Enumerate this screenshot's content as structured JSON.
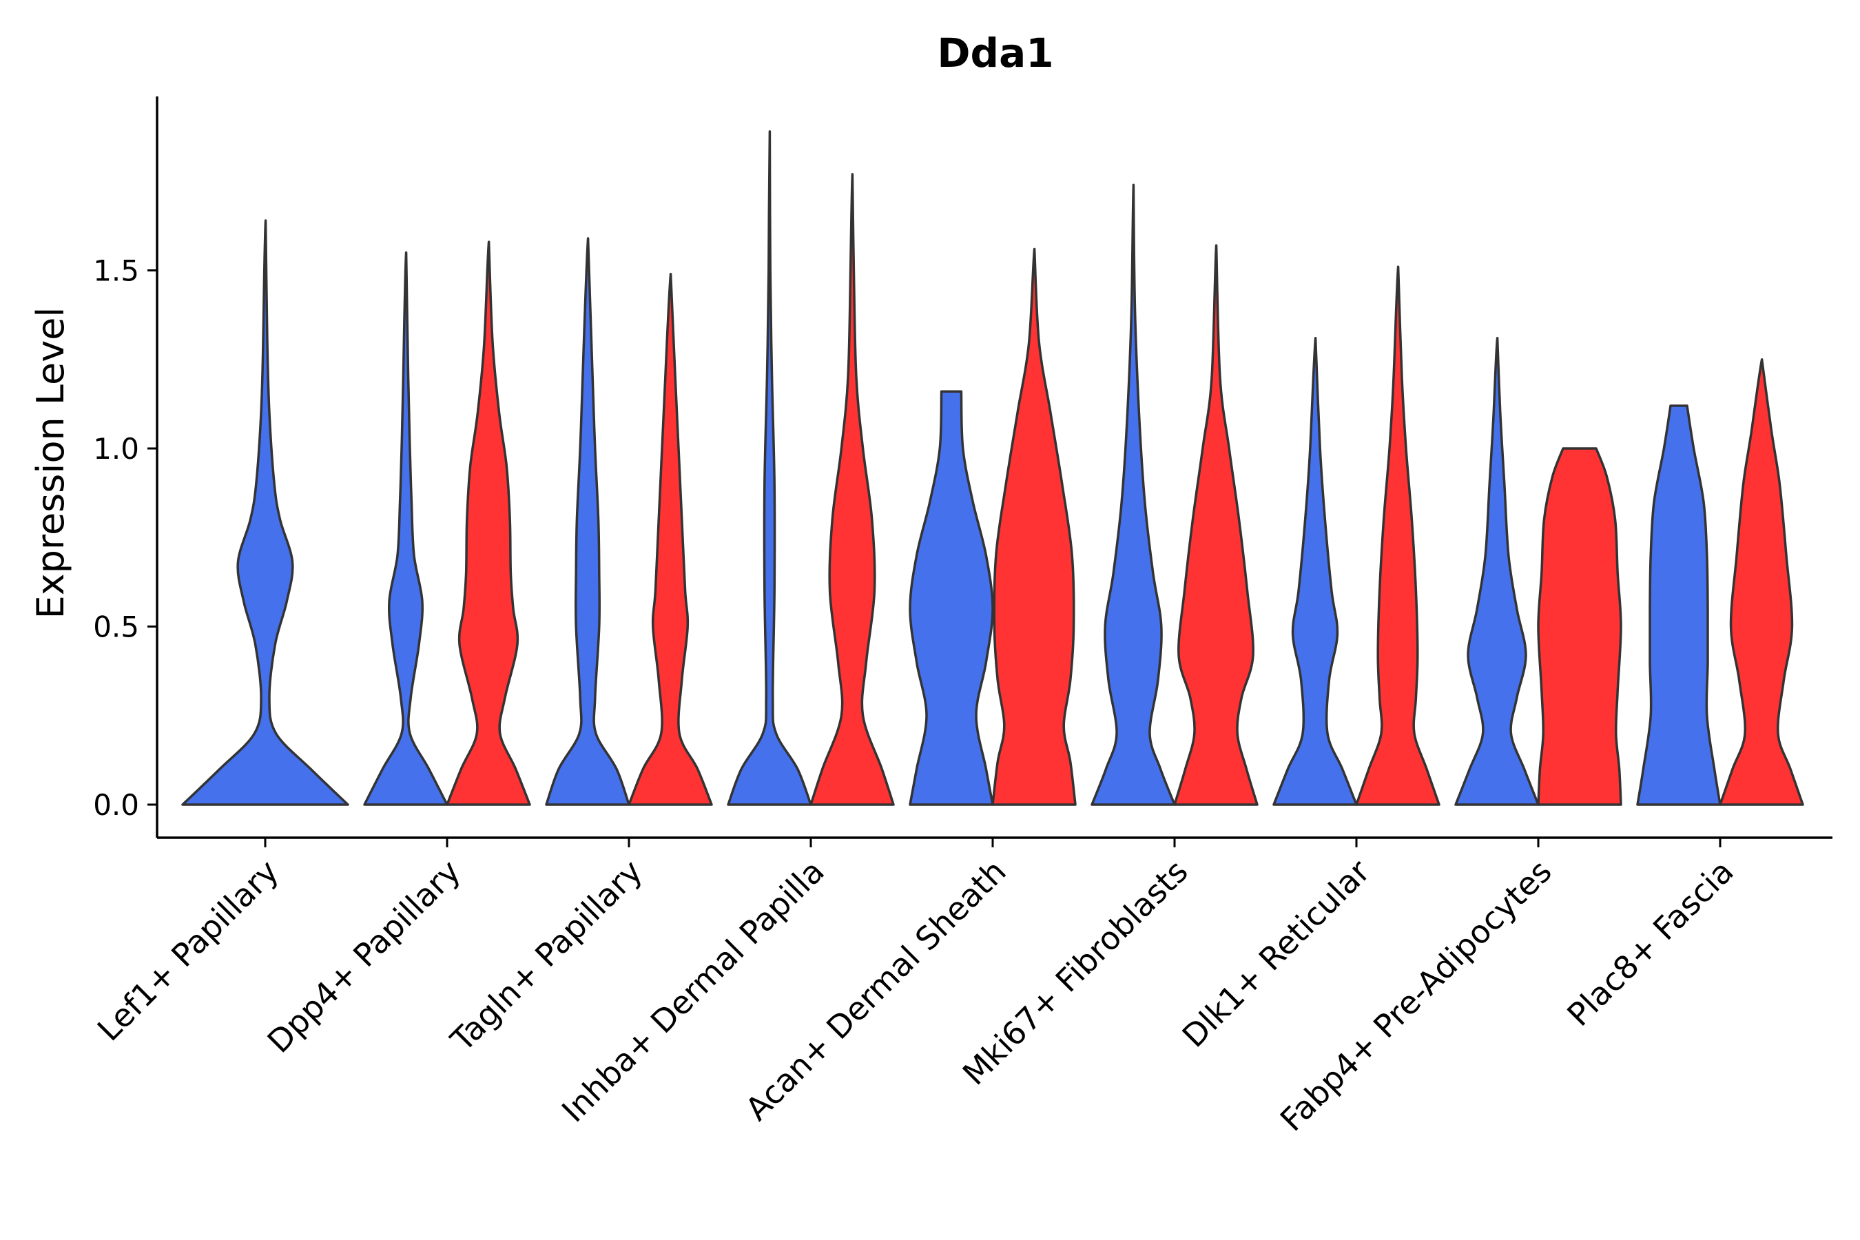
{
  "chart_data": {
    "type": "violin",
    "title": "Dda1",
    "xlabel": "",
    "ylabel": "Expression Level",
    "ylim": [
      -0.1,
      2.0
    ],
    "yticks": [
      0.0,
      0.5,
      1.0,
      1.5
    ],
    "ytick_labels": [
      "0.0",
      "0.5",
      "1.0",
      "1.5"
    ],
    "colors": {
      "group1": "#4571EC",
      "group2": "#FF3333"
    },
    "categories": [
      "Lef1+ Papillary",
      "Dpp4+ Papillary",
      "Tagln+ Papillary",
      "Inhba+ Dermal Papilla",
      "Acan+ Dermal Sheath",
      "Mki67+ Fibroblasts",
      "Dlk1+ Reticular",
      "Fabp4+ Pre-Adipocytes",
      "Plac8+ Fascia"
    ],
    "violins": [
      {
        "category": "Lef1+ Papillary",
        "group": "group1",
        "max": 1.64,
        "profile": [
          [
            0.0,
            1.0
          ],
          [
            0.1,
            0.55
          ],
          [
            0.2,
            0.13
          ],
          [
            0.3,
            0.05
          ],
          [
            0.45,
            0.12
          ],
          [
            0.57,
            0.26
          ],
          [
            0.68,
            0.33
          ],
          [
            0.8,
            0.18
          ],
          [
            0.9,
            0.11
          ],
          [
            1.1,
            0.05
          ],
          [
            1.3,
            0.025
          ],
          [
            1.64,
            0.005
          ]
        ]
      },
      {
        "category": "Dpp4+ Papillary",
        "group": "group1",
        "max": 1.55,
        "profile": [
          [
            0.0,
            0.5
          ],
          [
            0.1,
            0.28
          ],
          [
            0.2,
            0.05
          ],
          [
            0.3,
            0.06
          ],
          [
            0.45,
            0.16
          ],
          [
            0.57,
            0.2
          ],
          [
            0.7,
            0.1
          ],
          [
            0.85,
            0.07
          ],
          [
            1.0,
            0.05
          ],
          [
            1.2,
            0.03
          ],
          [
            1.55,
            0.005
          ]
        ]
      },
      {
        "category": "Dpp4+ Papillary",
        "group": "group2",
        "max": 1.58,
        "profile": [
          [
            0.0,
            0.5
          ],
          [
            0.1,
            0.33
          ],
          [
            0.2,
            0.14
          ],
          [
            0.3,
            0.2
          ],
          [
            0.45,
            0.35
          ],
          [
            0.55,
            0.3
          ],
          [
            0.65,
            0.27
          ],
          [
            0.8,
            0.26
          ],
          [
            0.95,
            0.22
          ],
          [
            1.1,
            0.13
          ],
          [
            1.3,
            0.05
          ],
          [
            1.58,
            0.005
          ]
        ]
      },
      {
        "category": "Tagln+ Papillary",
        "group": "group1",
        "max": 1.59,
        "profile": [
          [
            0.0,
            0.5
          ],
          [
            0.1,
            0.35
          ],
          [
            0.2,
            0.1
          ],
          [
            0.3,
            0.09
          ],
          [
            0.5,
            0.14
          ],
          [
            0.65,
            0.14
          ],
          [
            0.8,
            0.13
          ],
          [
            1.0,
            0.09
          ],
          [
            1.2,
            0.06
          ],
          [
            1.59,
            0.005
          ]
        ]
      },
      {
        "category": "Tagln+ Papillary",
        "group": "group2",
        "max": 1.49,
        "profile": [
          [
            0.0,
            0.5
          ],
          [
            0.1,
            0.33
          ],
          [
            0.2,
            0.11
          ],
          [
            0.35,
            0.14
          ],
          [
            0.5,
            0.21
          ],
          [
            0.6,
            0.18
          ],
          [
            0.8,
            0.14
          ],
          [
            1.0,
            0.1
          ],
          [
            1.2,
            0.06
          ],
          [
            1.49,
            0.005
          ]
        ]
      },
      {
        "category": "Inhba+ Dermal Papilla",
        "group": "group1",
        "max": 1.89,
        "profile": [
          [
            0.0,
            0.5
          ],
          [
            0.1,
            0.34
          ],
          [
            0.2,
            0.08
          ],
          [
            0.3,
            0.04
          ],
          [
            0.6,
            0.06
          ],
          [
            0.9,
            0.06
          ],
          [
            1.2,
            0.03
          ],
          [
            1.5,
            0.01
          ],
          [
            1.89,
            0.003
          ]
        ]
      },
      {
        "category": "Inhba+ Dermal Papilla",
        "group": "group2",
        "max": 1.77,
        "profile": [
          [
            0.0,
            0.5
          ],
          [
            0.1,
            0.36
          ],
          [
            0.25,
            0.13
          ],
          [
            0.4,
            0.17
          ],
          [
            0.6,
            0.27
          ],
          [
            0.8,
            0.24
          ],
          [
            1.0,
            0.13
          ],
          [
            1.2,
            0.05
          ],
          [
            1.5,
            0.02
          ],
          [
            1.77,
            0.003
          ]
        ]
      },
      {
        "category": "Acan+ Dermal Sheath",
        "group": "group1",
        "max": 1.16,
        "profile": [
          [
            0.0,
            0.5
          ],
          [
            0.1,
            0.42
          ],
          [
            0.25,
            0.3
          ],
          [
            0.4,
            0.42
          ],
          [
            0.55,
            0.5
          ],
          [
            0.7,
            0.42
          ],
          [
            0.85,
            0.26
          ],
          [
            1.0,
            0.14
          ],
          [
            1.16,
            0.12
          ]
        ]
      },
      {
        "category": "Acan+ Dermal Sheath",
        "group": "group2",
        "max": 1.56,
        "profile": [
          [
            0.0,
            0.5
          ],
          [
            0.12,
            0.44
          ],
          [
            0.22,
            0.36
          ],
          [
            0.35,
            0.44
          ],
          [
            0.5,
            0.48
          ],
          [
            0.7,
            0.46
          ],
          [
            0.9,
            0.34
          ],
          [
            1.1,
            0.2
          ],
          [
            1.3,
            0.06
          ],
          [
            1.56,
            0.005
          ]
        ]
      },
      {
        "category": "Mki67+ Fibroblasts",
        "group": "group1",
        "max": 1.74,
        "profile": [
          [
            0.0,
            0.5
          ],
          [
            0.1,
            0.33
          ],
          [
            0.2,
            0.2
          ],
          [
            0.35,
            0.3
          ],
          [
            0.5,
            0.34
          ],
          [
            0.65,
            0.24
          ],
          [
            0.85,
            0.14
          ],
          [
            1.1,
            0.07
          ],
          [
            1.4,
            0.02
          ],
          [
            1.74,
            0.003
          ]
        ]
      },
      {
        "category": "Mki67+ Fibroblasts",
        "group": "group2",
        "max": 1.57,
        "profile": [
          [
            0.0,
            0.5
          ],
          [
            0.1,
            0.37
          ],
          [
            0.2,
            0.26
          ],
          [
            0.3,
            0.31
          ],
          [
            0.42,
            0.45
          ],
          [
            0.6,
            0.38
          ],
          [
            0.8,
            0.28
          ],
          [
            1.0,
            0.16
          ],
          [
            1.2,
            0.05
          ],
          [
            1.57,
            0.005
          ]
        ]
      },
      {
        "category": "Dlk1+ Reticular",
        "group": "group1",
        "max": 1.31,
        "profile": [
          [
            0.0,
            0.5
          ],
          [
            0.1,
            0.33
          ],
          [
            0.2,
            0.15
          ],
          [
            0.35,
            0.17
          ],
          [
            0.48,
            0.27
          ],
          [
            0.6,
            0.2
          ],
          [
            0.8,
            0.12
          ],
          [
            1.0,
            0.06
          ],
          [
            1.31,
            0.005
          ]
        ]
      },
      {
        "category": "Dlk1+ Reticular",
        "group": "group2",
        "max": 1.51,
        "profile": [
          [
            0.0,
            0.5
          ],
          [
            0.1,
            0.35
          ],
          [
            0.2,
            0.2
          ],
          [
            0.3,
            0.22
          ],
          [
            0.42,
            0.24
          ],
          [
            0.6,
            0.22
          ],
          [
            0.8,
            0.17
          ],
          [
            1.0,
            0.1
          ],
          [
            1.2,
            0.05
          ],
          [
            1.51,
            0.005
          ]
        ]
      },
      {
        "category": "Fabp4+ Pre-Adipocytes",
        "group": "group1",
        "max": 1.31,
        "profile": [
          [
            0.0,
            0.5
          ],
          [
            0.1,
            0.33
          ],
          [
            0.2,
            0.17
          ],
          [
            0.3,
            0.24
          ],
          [
            0.42,
            0.35
          ],
          [
            0.55,
            0.24
          ],
          [
            0.7,
            0.14
          ],
          [
            0.9,
            0.09
          ],
          [
            1.1,
            0.04
          ],
          [
            1.31,
            0.005
          ]
        ]
      },
      {
        "category": "Fabp4+ Pre-Adipocytes",
        "group": "group2",
        "max": 1.0,
        "profile": [
          [
            0.0,
            0.5
          ],
          [
            0.1,
            0.48
          ],
          [
            0.2,
            0.44
          ],
          [
            0.32,
            0.46
          ],
          [
            0.5,
            0.5
          ],
          [
            0.65,
            0.46
          ],
          [
            0.8,
            0.43
          ],
          [
            0.92,
            0.33
          ],
          [
            1.0,
            0.2
          ]
        ]
      },
      {
        "category": "Plac8+ Fascia",
        "group": "group1",
        "max": 1.12,
        "profile": [
          [
            0.0,
            0.5
          ],
          [
            0.1,
            0.43
          ],
          [
            0.25,
            0.34
          ],
          [
            0.4,
            0.35
          ],
          [
            0.55,
            0.35
          ],
          [
            0.7,
            0.34
          ],
          [
            0.85,
            0.3
          ],
          [
            1.0,
            0.18
          ],
          [
            1.12,
            0.1
          ]
        ]
      },
      {
        "category": "Plac8+ Fascia",
        "group": "group2",
        "max": 1.25,
        "profile": [
          [
            0.0,
            0.5
          ],
          [
            0.1,
            0.35
          ],
          [
            0.2,
            0.2
          ],
          [
            0.35,
            0.27
          ],
          [
            0.5,
            0.37
          ],
          [
            0.7,
            0.3
          ],
          [
            0.9,
            0.22
          ],
          [
            1.05,
            0.12
          ],
          [
            1.25,
            0.005
          ]
        ]
      }
    ]
  }
}
